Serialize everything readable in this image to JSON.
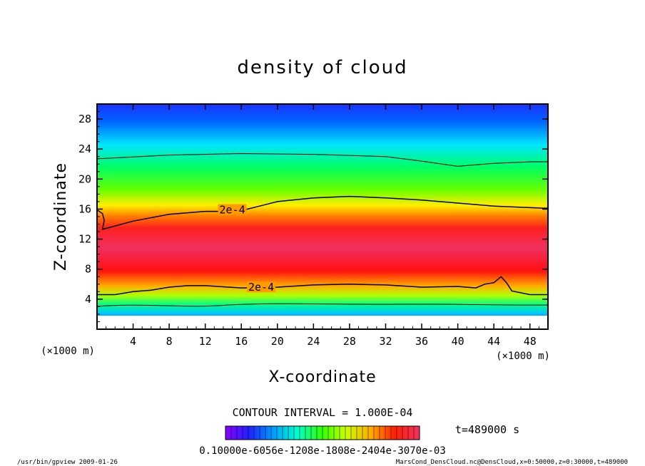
{
  "chart_data": {
    "type": "heatmap",
    "title": "density of cloud",
    "xlabel": "X-coordinate",
    "ylabel": "Z-coordinate",
    "x_unit_label": "(×1000 m)",
    "y_unit_label": "(×1000 m)",
    "xlim": [
      0,
      50
    ],
    "ylim": [
      0,
      30
    ],
    "x_ticks": [
      4,
      8,
      12,
      16,
      20,
      24,
      28,
      32,
      36,
      40,
      44,
      48
    ],
    "y_ticks": [
      4,
      8,
      12,
      16,
      20,
      24,
      28
    ],
    "contour_interval_text": "CONTOUR INTERVAL = 1.000E-04",
    "time_text": "t=489000 s",
    "colorbar_labels_text": "0.10000e-6056e-1208e-1808e-2404e-3070e-03",
    "contour_labels": [
      {
        "text": "2e-4",
        "x": 15.0,
        "z": 15.8
      },
      {
        "text": "2e-4",
        "x": 18.2,
        "z": 5.5
      }
    ],
    "upper_contour": [
      [
        0,
        15.9
      ],
      [
        0.6,
        15.4
      ],
      [
        0.8,
        14.5
      ],
      [
        0.6,
        13.3
      ],
      [
        4,
        14.4
      ],
      [
        8,
        15.3
      ],
      [
        12,
        15.7
      ],
      [
        14,
        15.7
      ],
      [
        16,
        15.8
      ],
      [
        18,
        16.4
      ],
      [
        20,
        17.0
      ],
      [
        24,
        17.5
      ],
      [
        28,
        17.7
      ],
      [
        32,
        17.5
      ],
      [
        36,
        17.2
      ],
      [
        40,
        16.8
      ],
      [
        44,
        16.4
      ],
      [
        48,
        16.2
      ],
      [
        50,
        16.1
      ]
    ],
    "lower_contour": [
      [
        0,
        4.6
      ],
      [
        2,
        4.6
      ],
      [
        4,
        5.0
      ],
      [
        6,
        5.2
      ],
      [
        8,
        5.6
      ],
      [
        10,
        5.8
      ],
      [
        12,
        5.8
      ],
      [
        16,
        5.5
      ],
      [
        20,
        5.6
      ],
      [
        24,
        5.9
      ],
      [
        28,
        6.0
      ],
      [
        32,
        5.9
      ],
      [
        36,
        5.6
      ],
      [
        40,
        5.7
      ],
      [
        42,
        5.5
      ],
      [
        43,
        6.0
      ],
      [
        44,
        6.2
      ],
      [
        44.8,
        7.0
      ],
      [
        45.4,
        6.2
      ],
      [
        46,
        5.1
      ],
      [
        48,
        4.6
      ],
      [
        50,
        4.6
      ]
    ],
    "outer_contour_z": 22.7,
    "color_scale": [
      "#8b00ff",
      "#3300ff",
      "#0066ff",
      "#00ccff",
      "#00ffbb",
      "#00ff33",
      "#66ff00",
      "#ccff00",
      "#ffff00",
      "#ffaa00",
      "#ff5500",
      "#ff0000",
      "#f03060"
    ],
    "footer_left": "/usr/bin/gpview  2009-01-26",
    "footer_right": "MarsCond_DensCloud.nc@DensCloud,x=0:50000,z=0:30000,t=489000"
  }
}
